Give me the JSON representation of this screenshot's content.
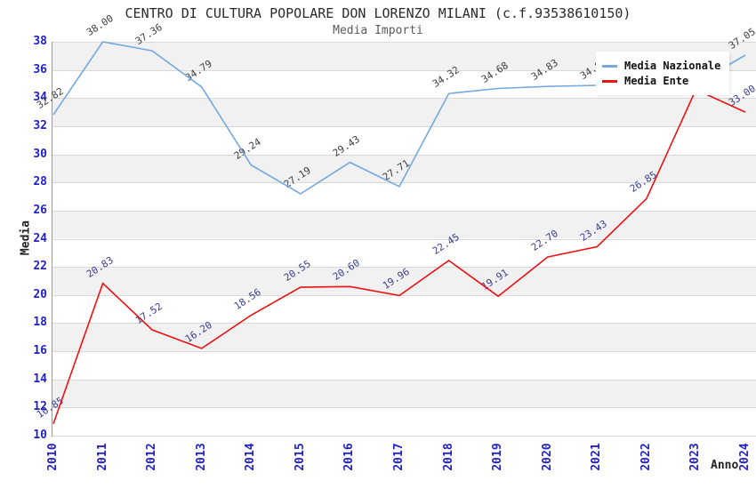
{
  "title": "CENTRO DI CULTURA POPOLARE DON LORENZO MILANI (c.f.93538610150)",
  "subtitle": "Media Importi",
  "axes": {
    "y_label": "Media",
    "x_label": "Anno",
    "y_ticks": [
      10,
      12,
      14,
      16,
      18,
      20,
      22,
      24,
      26,
      28,
      30,
      32,
      34,
      36,
      38
    ],
    "x_ticks": [
      "2010",
      "2011",
      "2012",
      "2013",
      "2014",
      "2015",
      "2016",
      "2017",
      "2018",
      "2019",
      "2020",
      "2021",
      "2022",
      "2023",
      "2024"
    ],
    "tick_color": "#2222cc"
  },
  "legend": {
    "position": "top-right",
    "items": [
      {
        "label": "Media Nazionale",
        "color": "#74a9e0"
      },
      {
        "label": "Media Ente",
        "color": "#ee1111"
      }
    ]
  },
  "colors": {
    "band_gray": "#f1f1f1",
    "gridline": "#d9d9d9",
    "axis_line": "#9a9a9a",
    "tick_blue": "#2222cc"
  },
  "chart_data": {
    "type": "line",
    "title": "CENTRO DI CULTURA POPOLARE DON LORENZO MILANI (c.f.93538610150)",
    "subtitle": "Media Importi",
    "xlabel": "Anno",
    "ylabel": "Media",
    "ylim": [
      10,
      38
    ],
    "grid": "horizontal gridlines every 2 units, alternating gray/white bands",
    "legend_position": "top-right",
    "x": [
      2010,
      2011,
      2012,
      2013,
      2014,
      2015,
      2016,
      2017,
      2018,
      2019,
      2020,
      2021,
      2022,
      2023,
      2024
    ],
    "series": [
      {
        "name": "Media Nazionale",
        "color": "#74a9e0",
        "label_color": "#3d3d3d",
        "values": [
          32.82,
          38.0,
          37.36,
          34.79,
          29.24,
          27.19,
          29.43,
          27.71,
          34.32,
          34.68,
          34.83,
          34.9,
          34.95,
          35.0,
          37.05
        ]
      },
      {
        "name": "Media Ente",
        "color": "#ee1111",
        "label_color": "#3b3b94",
        "values": [
          10.85,
          20.83,
          17.52,
          16.2,
          18.56,
          20.55,
          20.6,
          19.96,
          22.45,
          19.91,
          22.7,
          23.43,
          26.85,
          34.6,
          33.0
        ]
      }
    ],
    "labels_hidden_by_legend": {
      "Media Nazionale": [
        2021,
        2022,
        2023
      ],
      "Media Ente": [
        2023
      ]
    }
  }
}
